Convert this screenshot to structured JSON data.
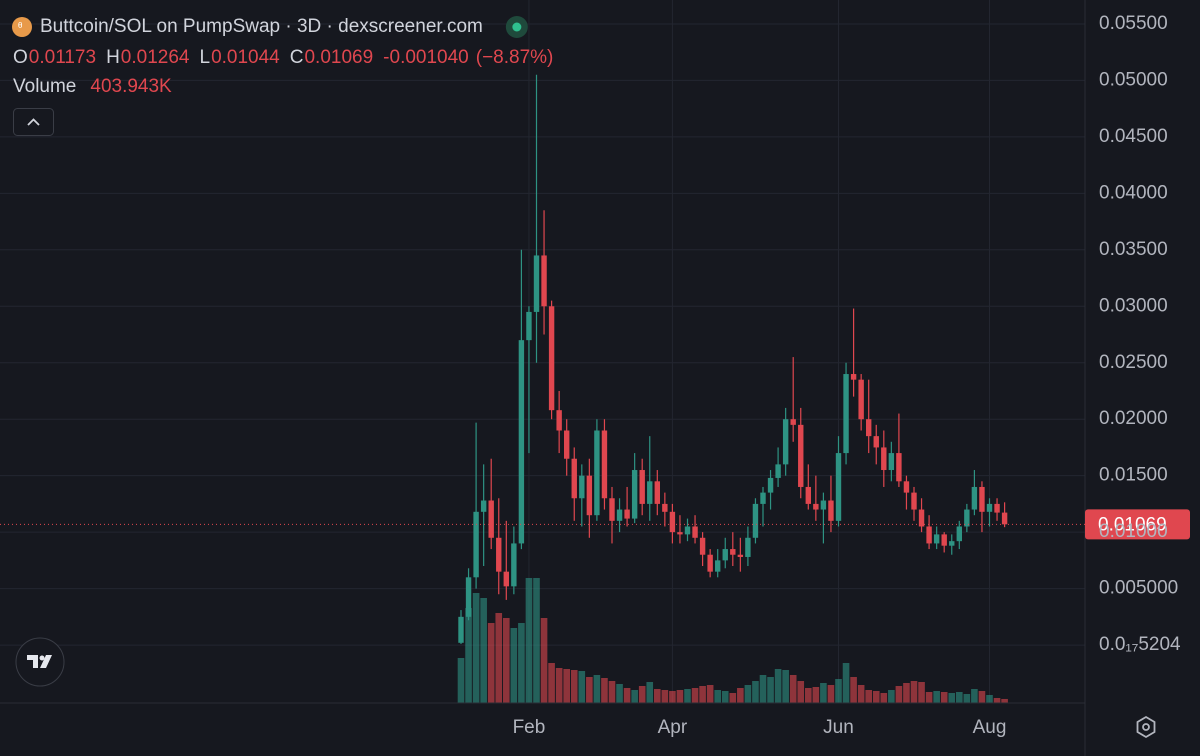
{
  "chart_data": {
    "type": "candlestick",
    "title": "Buttcoin/SOL on PumpSwap · 3D · dexscreener.com",
    "legend": {
      "open": "O",
      "high": "H",
      "low": "L",
      "close": "C",
      "change": {
        "value": -0.00104,
        "label": "-0.001040"
      },
      "change_pct": {
        "value": -8.87,
        "label": "(−8.87%)"
      }
    },
    "up_color": "#2e9383",
    "down_color": "#e0474f",
    "grid": true,
    "categories": [
      null,
      null,
      null,
      null,
      null,
      null,
      null,
      null,
      null,
      "Feb",
      null,
      null,
      null,
      null,
      null,
      null,
      null,
      null,
      null,
      null,
      null,
      null,
      null,
      null,
      null,
      null,
      null,
      null,
      "Apr",
      null,
      null,
      null,
      null,
      null,
      null,
      null,
      null,
      null,
      null,
      null,
      null,
      null,
      null,
      null,
      null,
      null,
      null,
      null,
      null,
      null,
      "Jun",
      null,
      null,
      null,
      null,
      null,
      null,
      null,
      null,
      null,
      null,
      null,
      null,
      null,
      null,
      null,
      null,
      null,
      null,
      null,
      "Aug",
      null,
      null
    ],
    "open": [
      0.0002,
      0.0025,
      0.006,
      0.0118,
      0.0128,
      0.0095,
      0.0065,
      0.0052,
      0.009,
      0.027,
      0.0295,
      0.0345,
      0.03,
      0.0208,
      0.019,
      0.0165,
      0.013,
      0.015,
      0.0115,
      0.019,
      0.013,
      0.011,
      0.012,
      0.0112,
      0.0155,
      0.0125,
      0.0145,
      0.0125,
      0.0118,
      0.01,
      0.0098,
      0.0105,
      0.0095,
      0.008,
      0.0065,
      0.0075,
      0.0085,
      0.008,
      0.0078,
      0.0095,
      0.0125,
      0.0135,
      0.0148,
      0.016,
      0.02,
      0.0195,
      0.014,
      0.0125,
      0.012,
      0.0128,
      0.011,
      0.017,
      0.024,
      0.0235,
      0.02,
      0.0185,
      0.0175,
      0.0155,
      0.017,
      0.0145,
      0.0135,
      0.012,
      0.0105,
      0.009,
      0.0098,
      0.0088,
      0.0092,
      0.0105,
      0.012,
      0.014,
      0.0118,
      0.0125,
      0.01173
    ],
    "high": [
      0.0031,
      0.0068,
      0.0197,
      0.016,
      0.0165,
      0.013,
      0.011,
      0.0105,
      0.035,
      0.03,
      0.0505,
      0.0385,
      0.0305,
      0.0225,
      0.02,
      0.0175,
      0.016,
      0.0165,
      0.02,
      0.02,
      0.014,
      0.013,
      0.014,
      0.017,
      0.0165,
      0.0185,
      0.0155,
      0.0135,
      0.0125,
      0.0115,
      0.0112,
      0.0115,
      0.01,
      0.0085,
      0.0085,
      0.0095,
      0.01,
      0.0095,
      0.0105,
      0.013,
      0.014,
      0.0155,
      0.0175,
      0.021,
      0.0255,
      0.021,
      0.016,
      0.015,
      0.0135,
      0.015,
      0.0185,
      0.025,
      0.0298,
      0.024,
      0.0235,
      0.0195,
      0.019,
      0.018,
      0.0205,
      0.015,
      0.014,
      0.013,
      0.0115,
      0.0105,
      0.01,
      0.0098,
      0.011,
      0.0125,
      0.0155,
      0.0145,
      0.013,
      0.013,
      0.01264
    ],
    "low": [
      0.0001,
      0.0022,
      0.005,
      0.007,
      0.0085,
      0.0045,
      0.004,
      0.0045,
      0.0085,
      0.017,
      0.025,
      0.0275,
      0.02,
      0.017,
      0.015,
      0.011,
      0.0105,
      0.0095,
      0.011,
      0.012,
      0.009,
      0.01,
      0.0105,
      0.0108,
      0.0115,
      0.011,
      0.0115,
      0.0105,
      0.009,
      0.009,
      0.0092,
      0.009,
      0.007,
      0.006,
      0.006,
      0.0068,
      0.007,
      0.0065,
      0.007,
      0.009,
      0.0105,
      0.012,
      0.014,
      0.015,
      0.018,
      0.013,
      0.012,
      0.011,
      0.009,
      0.01,
      0.0105,
      0.016,
      0.022,
      0.019,
      0.017,
      0.016,
      0.014,
      0.0145,
      0.014,
      0.012,
      0.011,
      0.01,
      0.0085,
      0.0085,
      0.0082,
      0.008,
      0.0085,
      0.01,
      0.0115,
      0.01,
      0.0105,
      0.011,
      0.01044
    ],
    "close": [
      0.0025,
      0.006,
      0.0118,
      0.0128,
      0.0095,
      0.0065,
      0.0052,
      0.009,
      0.027,
      0.0295,
      0.0345,
      0.03,
      0.0208,
      0.019,
      0.0165,
      0.013,
      0.015,
      0.0115,
      0.019,
      0.013,
      0.011,
      0.012,
      0.0112,
      0.0155,
      0.0125,
      0.0145,
      0.0125,
      0.0118,
      0.01,
      0.0098,
      0.0105,
      0.0095,
      0.008,
      0.0065,
      0.0075,
      0.0085,
      0.008,
      0.0078,
      0.0095,
      0.0125,
      0.0135,
      0.0148,
      0.016,
      0.02,
      0.0195,
      0.014,
      0.0125,
      0.012,
      0.0128,
      0.011,
      0.017,
      0.024,
      0.0235,
      0.02,
      0.0185,
      0.0175,
      0.0155,
      0.017,
      0.0145,
      0.0135,
      0.012,
      0.0105,
      0.009,
      0.0098,
      0.0088,
      0.0092,
      0.0105,
      0.012,
      0.014,
      0.0118,
      0.0125,
      0.01173,
      0.01069
    ],
    "volume": {
      "name": "Volume",
      "last_label": "403.943K",
      "values": [
        4500000,
        9500000,
        11000000,
        10500000,
        8000000,
        9000000,
        8500000,
        7500000,
        8000000,
        12500000,
        12500000,
        8500000,
        4000000,
        3500000,
        3400000,
        3300000,
        3200000,
        2600000,
        2800000,
        2500000,
        2200000,
        1900000,
        1500000,
        1300000,
        1700000,
        2100000,
        1400000,
        1300000,
        1200000,
        1300000,
        1400000,
        1500000,
        1700000,
        1800000,
        1300000,
        1200000,
        1000000,
        1500000,
        1800000,
        2200000,
        2800000,
        2600000,
        3400000,
        3300000,
        2800000,
        2200000,
        1500000,
        1600000,
        2000000,
        1800000,
        2400000,
        4000000,
        2600000,
        1800000,
        1300000,
        1200000,
        1000000,
        1300000,
        1700000,
        2000000,
        2200000,
        2100000,
        1100000,
        1200000,
        1100000,
        1000000,
        1100000,
        900000,
        1400000,
        1200000,
        800000,
        500000,
        403943
      ]
    },
    "volume_ylim": [
      0,
      70300000
    ],
    "ylim": [
      -0.00513,
      0.05712
    ],
    "yticks": [
      {
        "value": 0.055,
        "label": "0.05500"
      },
      {
        "value": 0.05,
        "label": "0.05000"
      },
      {
        "value": 0.045,
        "label": "0.04500"
      },
      {
        "value": 0.04,
        "label": "0.04000"
      },
      {
        "value": 0.035,
        "label": "0.03500"
      },
      {
        "value": 0.03,
        "label": "0.03000"
      },
      {
        "value": 0.025,
        "label": "0.02500"
      },
      {
        "value": 0.02,
        "label": "0.02000"
      },
      {
        "value": 0.015,
        "label": "0.01500"
      },
      {
        "value": 0.01,
        "label": "0.01000"
      },
      {
        "value": 0.005,
        "label": "0.005000"
      },
      {
        "value": 5.204e-18,
        "label": "0.0₁₇5204"
      }
    ]
  }
}
